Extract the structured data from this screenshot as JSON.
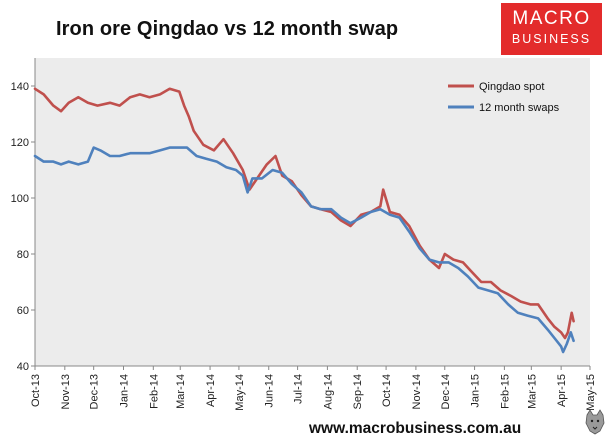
{
  "title": "Iron ore Qingdao vs 12 month swap",
  "logo": {
    "line1": "MACRO",
    "line2": "BUSINESS"
  },
  "footer": "www.macrobusiness.com.au",
  "colors": {
    "spot": "#c0504d",
    "swap": "#4f81bd",
    "plot_bg": "#ececec"
  },
  "chart_data": {
    "type": "line",
    "title": "Iron ore Qingdao vs 12 month swap",
    "xlabel": "",
    "ylabel": "",
    "ylim": [
      40,
      150
    ],
    "yticks": [
      40,
      60,
      80,
      100,
      120,
      140
    ],
    "xlim": [
      "2013-10-01",
      "2015-05-01"
    ],
    "xticks": [
      "Oct-13",
      "Nov-13",
      "Dec-13",
      "Jan-14",
      "Feb-14",
      "Mar-14",
      "Apr-14",
      "May-14",
      "Jun-14",
      "Jul-14",
      "Aug-14",
      "Sep-14",
      "Oct-14",
      "Nov-14",
      "Dec-14",
      "Jan-15",
      "Feb-15",
      "Mar-15",
      "Apr-15",
      "May-15"
    ],
    "grid": false,
    "legend_position": "top-right",
    "series": [
      {
        "name": "Qingdao spot",
        "color": "#c0504d",
        "points": [
          [
            "2013-10-01",
            139
          ],
          [
            "2013-10-10",
            137
          ],
          [
            "2013-10-20",
            133
          ],
          [
            "2013-10-28",
            131
          ],
          [
            "2013-11-05",
            134
          ],
          [
            "2013-11-15",
            136
          ],
          [
            "2013-11-25",
            134
          ],
          [
            "2013-12-05",
            133
          ],
          [
            "2013-12-18",
            134
          ],
          [
            "2013-12-28",
            133
          ],
          [
            "2014-01-08",
            136
          ],
          [
            "2014-01-18",
            137
          ],
          [
            "2014-01-28",
            136
          ],
          [
            "2014-02-08",
            137
          ],
          [
            "2014-02-18",
            139
          ],
          [
            "2014-02-28",
            138
          ],
          [
            "2014-03-05",
            133
          ],
          [
            "2014-03-10",
            129
          ],
          [
            "2014-03-15",
            124
          ],
          [
            "2014-03-25",
            119
          ],
          [
            "2014-04-05",
            117
          ],
          [
            "2014-04-15",
            121
          ],
          [
            "2014-04-25",
            116
          ],
          [
            "2014-05-05",
            110
          ],
          [
            "2014-05-12",
            103
          ],
          [
            "2014-05-20",
            107
          ],
          [
            "2014-05-30",
            112
          ],
          [
            "2014-06-08",
            115
          ],
          [
            "2014-06-15",
            108
          ],
          [
            "2014-06-25",
            106
          ],
          [
            "2014-07-05",
            101
          ],
          [
            "2014-07-15",
            97
          ],
          [
            "2014-07-25",
            96
          ],
          [
            "2014-08-05",
            95
          ],
          [
            "2014-08-15",
            92
          ],
          [
            "2014-08-25",
            90
          ],
          [
            "2014-09-05",
            94
          ],
          [
            "2014-09-15",
            95
          ],
          [
            "2014-09-25",
            97
          ],
          [
            "2014-09-28",
            103
          ],
          [
            "2014-10-05",
            95
          ],
          [
            "2014-10-15",
            94
          ],
          [
            "2014-10-25",
            90
          ],
          [
            "2014-11-05",
            83
          ],
          [
            "2014-11-15",
            78
          ],
          [
            "2014-11-25",
            75
          ],
          [
            "2014-12-01",
            80
          ],
          [
            "2014-12-10",
            78
          ],
          [
            "2014-12-20",
            77
          ],
          [
            "2014-12-28",
            74
          ],
          [
            "2015-01-08",
            70
          ],
          [
            "2015-01-18",
            70
          ],
          [
            "2015-01-28",
            67
          ],
          [
            "2015-02-08",
            65
          ],
          [
            "2015-02-18",
            63
          ],
          [
            "2015-02-28",
            62
          ],
          [
            "2015-03-08",
            62
          ],
          [
            "2015-03-18",
            57
          ],
          [
            "2015-03-25",
            54
          ],
          [
            "2015-04-01",
            52
          ],
          [
            "2015-04-05",
            50
          ],
          [
            "2015-04-08",
            52
          ],
          [
            "2015-04-12",
            59
          ],
          [
            "2015-04-14",
            56
          ]
        ]
      },
      {
        "name": "12 month swaps",
        "color": "#4f81bd",
        "points": [
          [
            "2013-10-01",
            115
          ],
          [
            "2013-10-10",
            113
          ],
          [
            "2013-10-20",
            113
          ],
          [
            "2013-10-28",
            112
          ],
          [
            "2013-11-05",
            113
          ],
          [
            "2013-11-15",
            112
          ],
          [
            "2013-11-25",
            113
          ],
          [
            "2013-12-01",
            118
          ],
          [
            "2013-12-08",
            117
          ],
          [
            "2013-12-18",
            115
          ],
          [
            "2013-12-28",
            115
          ],
          [
            "2014-01-08",
            116
          ],
          [
            "2014-01-18",
            116
          ],
          [
            "2014-01-28",
            116
          ],
          [
            "2014-02-08",
            117
          ],
          [
            "2014-02-18",
            118
          ],
          [
            "2014-02-28",
            118
          ],
          [
            "2014-03-08",
            118
          ],
          [
            "2014-03-18",
            115
          ],
          [
            "2014-03-28",
            114
          ],
          [
            "2014-04-08",
            113
          ],
          [
            "2014-04-18",
            111
          ],
          [
            "2014-04-28",
            110
          ],
          [
            "2014-05-05",
            108
          ],
          [
            "2014-05-10",
            102
          ],
          [
            "2014-05-15",
            107
          ],
          [
            "2014-05-25",
            107
          ],
          [
            "2014-06-05",
            110
          ],
          [
            "2014-06-15",
            109
          ],
          [
            "2014-06-25",
            105
          ],
          [
            "2014-07-05",
            102
          ],
          [
            "2014-07-15",
            97
          ],
          [
            "2014-07-25",
            96
          ],
          [
            "2014-08-05",
            96
          ],
          [
            "2014-08-15",
            93
          ],
          [
            "2014-08-25",
            91
          ],
          [
            "2014-09-05",
            93
          ],
          [
            "2014-09-15",
            95
          ],
          [
            "2014-09-25",
            96
          ],
          [
            "2014-10-05",
            94
          ],
          [
            "2014-10-15",
            93
          ],
          [
            "2014-10-25",
            88
          ],
          [
            "2014-11-05",
            82
          ],
          [
            "2014-11-15",
            78
          ],
          [
            "2014-11-25",
            77
          ],
          [
            "2014-12-05",
            77
          ],
          [
            "2014-12-15",
            75
          ],
          [
            "2014-12-25",
            72
          ],
          [
            "2015-01-05",
            68
          ],
          [
            "2015-01-15",
            67
          ],
          [
            "2015-01-25",
            66
          ],
          [
            "2015-02-05",
            62
          ],
          [
            "2015-02-15",
            59
          ],
          [
            "2015-02-25",
            58
          ],
          [
            "2015-03-08",
            57
          ],
          [
            "2015-03-18",
            53
          ],
          [
            "2015-03-25",
            50
          ],
          [
            "2015-04-01",
            47
          ],
          [
            "2015-04-03",
            45
          ],
          [
            "2015-04-07",
            48
          ],
          [
            "2015-04-11",
            52
          ],
          [
            "2015-04-14",
            49
          ]
        ]
      }
    ]
  }
}
